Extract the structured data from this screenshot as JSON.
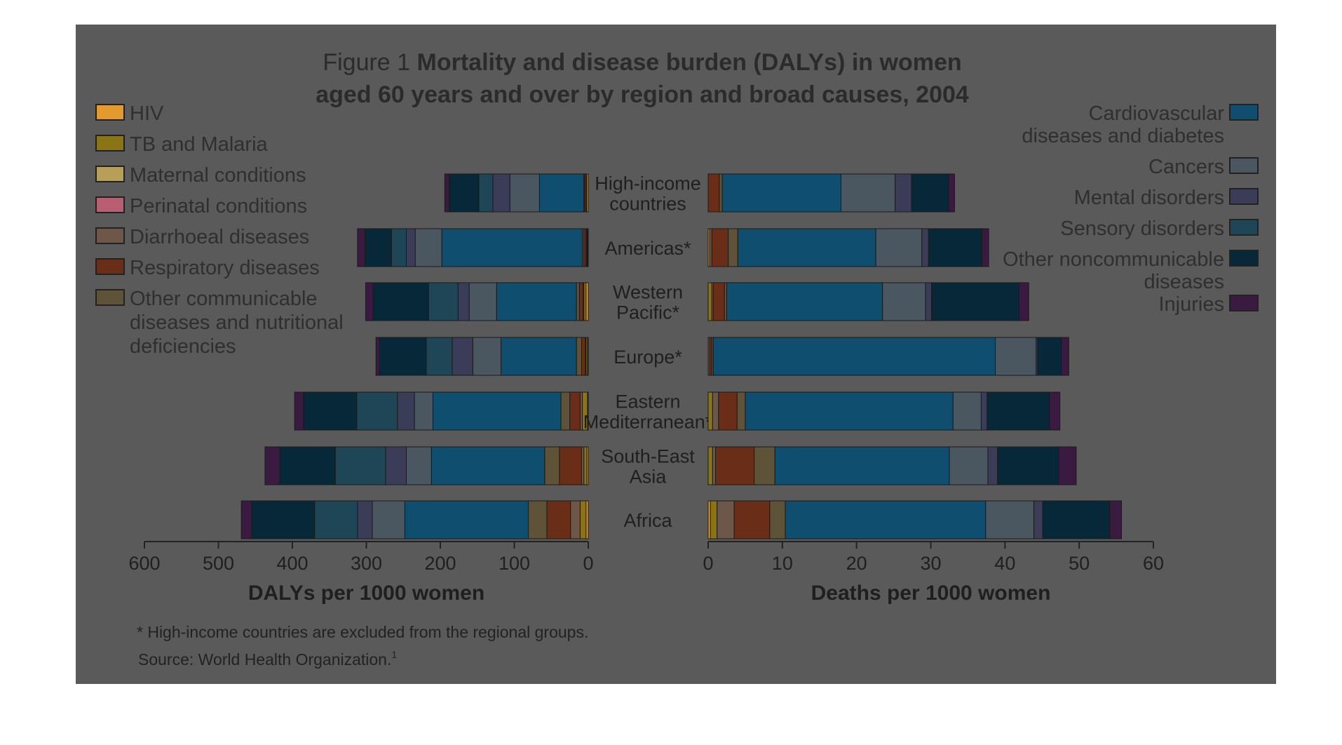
{
  "figure": {
    "title_prefix": "Figure 1",
    "title_line1": "Mortality and disease burden (DALYs) in women",
    "title_line2": "aged 60 years and over by region and broad causes, 2004",
    "footnote": "* High-income countries are excluded from the regional groups.",
    "source": "Source: World Health Organization.",
    "source_ref": "1"
  },
  "colors": {
    "panel_background": "#5a5a5a"
  },
  "legend_left": [
    {
      "label": "HIV",
      "color": "#e39a2e"
    },
    {
      "label": "TB and Malaria",
      "color": "#8a7416"
    },
    {
      "label": "Maternal conditions",
      "color": "#b79f59"
    },
    {
      "label": "Perinatal conditions",
      "color": "#b85f74"
    },
    {
      "label": "Diarrhoeal diseases",
      "color": "#6e5648"
    },
    {
      "label": "Respiratory diseases",
      "color": "#6a2e18"
    },
    {
      "label": "Other communicable",
      "label_cont": [
        "diseases and nutritional",
        "deficiencies"
      ],
      "color": "#5e5238"
    }
  ],
  "legend_right": [
    {
      "label": "Cardiovascular",
      "label_cont": [
        "diseases and diabetes"
      ],
      "color": "#0f4e6e"
    },
    {
      "label": "Cancers",
      "color": "#4a5660"
    },
    {
      "label": "Mental disorders",
      "color": "#3b3d58"
    },
    {
      "label": "Sensory disorders",
      "color": "#1f4656"
    },
    {
      "label": "Other noncommunicable",
      "label_cont": [
        "diseases"
      ],
      "color": "#062838"
    },
    {
      "label": "Injuries",
      "color": "#3a1a40"
    }
  ],
  "chart_data": [
    {
      "type": "bar",
      "orientation": "horizontal",
      "stacked": true,
      "xlabel": "DALYs per 1000 women",
      "xlim": [
        0,
        600
      ],
      "xticks": [
        "600",
        "500",
        "400",
        "300",
        "200",
        "100",
        "0"
      ],
      "axis_direction": "reversed",
      "categories": [
        [
          "High-income",
          "countries"
        ],
        [
          "Americas*"
        ],
        [
          "Western",
          "Pacific*"
        ],
        [
          "Europe*"
        ],
        [
          "Eastern",
          "Mediterranean*"
        ],
        [
          "South-East",
          "Asia"
        ],
        [
          "Africa"
        ]
      ],
      "series": [
        {
          "name": "HIV",
          "values": [
            2,
            1,
            3,
            1,
            1,
            2,
            3
          ]
        },
        {
          "name": "TB and Malaria",
          "values": [
            1,
            1,
            3,
            2,
            7,
            4,
            8
          ]
        },
        {
          "name": "Maternal conditions",
          "values": [
            0,
            0,
            0,
            0,
            0,
            0,
            0
          ]
        },
        {
          "name": "Perinatal conditions",
          "values": [
            0,
            0,
            0,
            0,
            0,
            0,
            0
          ]
        },
        {
          "name": "Diarrhoeal diseases",
          "values": [
            0,
            1,
            1,
            1,
            3,
            3,
            13
          ]
        },
        {
          "name": "Respiratory diseases",
          "values": [
            2,
            3,
            5,
            5,
            14,
            30,
            32
          ]
        },
        {
          "name": "Other communicable",
          "values": [
            1,
            2,
            4,
            7,
            12,
            20,
            25
          ]
        },
        {
          "name": "Cardiovascular",
          "values": [
            60,
            190,
            108,
            102,
            173,
            153,
            167
          ]
        },
        {
          "name": "Cancers",
          "values": [
            40,
            36,
            37,
            38,
            25,
            34,
            44
          ]
        },
        {
          "name": "Mental disorders",
          "values": [
            23,
            12,
            15,
            28,
            23,
            28,
            20
          ]
        },
        {
          "name": "Sensory disorders",
          "values": [
            19,
            20,
            40,
            35,
            55,
            68,
            58
          ]
        },
        {
          "name": "Other noncommunicable",
          "values": [
            40,
            36,
            75,
            63,
            72,
            75,
            85
          ]
        },
        {
          "name": "Injuries",
          "values": [
            6,
            10,
            10,
            5,
            12,
            20,
            14
          ]
        }
      ]
    },
    {
      "type": "bar",
      "orientation": "horizontal",
      "stacked": true,
      "xlabel": "Deaths per 1000 women",
      "xlim": [
        0,
        60
      ],
      "xticks": [
        "0",
        "10",
        "20",
        "30",
        "40",
        "50",
        "60"
      ],
      "categories": [
        [
          "High-income",
          "countries"
        ],
        [
          "Americas*"
        ],
        [
          "Western",
          "Pacific*"
        ],
        [
          "Europe*"
        ],
        [
          "Eastern",
          "Mediterranean*"
        ],
        [
          "South-East",
          "Asia"
        ],
        [
          "Africa"
        ]
      ],
      "series": [
        {
          "name": "HIV",
          "values": [
            0,
            0.2,
            0,
            0,
            0,
            0,
            0.3
          ]
        },
        {
          "name": "TB and Malaria",
          "values": [
            0,
            0,
            0.5,
            0,
            0.6,
            0.6,
            0.9
          ]
        },
        {
          "name": "Maternal conditions",
          "values": [
            0,
            0,
            0,
            0,
            0,
            0,
            0
          ]
        },
        {
          "name": "Perinatal conditions",
          "values": [
            0,
            0,
            0,
            0,
            0,
            0,
            0
          ]
        },
        {
          "name": "Diarrhoeal diseases",
          "values": [
            0,
            0.3,
            0.2,
            0.2,
            0.8,
            0.4,
            2.3
          ]
        },
        {
          "name": "Respiratory diseases",
          "values": [
            1.5,
            2.2,
            1.5,
            0.3,
            2.5,
            5.2,
            4.8
          ]
        },
        {
          "name": "Other communicable",
          "values": [
            0.4,
            1.3,
            0.3,
            0.2,
            1.1,
            2.8,
            2.1
          ]
        },
        {
          "name": "Cardiovascular",
          "values": [
            16,
            18.6,
            21,
            38,
            28,
            23.5,
            27
          ]
        },
        {
          "name": "Cancers",
          "values": [
            7.3,
            6.2,
            5.8,
            5.5,
            3.8,
            5.2,
            6.5
          ]
        },
        {
          "name": "Mental disorders",
          "values": [
            2.2,
            0.9,
            0.8,
            0.2,
            0.8,
            1.3,
            1.2
          ]
        },
        {
          "name": "Sensory disorders",
          "values": [
            0,
            0,
            0,
            0,
            0,
            0,
            0
          ]
        },
        {
          "name": "Other noncommunicable",
          "values": [
            5,
            7.2,
            11.8,
            3.2,
            8.4,
            8.2,
            9
          ]
        },
        {
          "name": "Injuries",
          "values": [
            0.8,
            0.9,
            1.3,
            1,
            1.4,
            2.4,
            1.6
          ]
        }
      ]
    }
  ]
}
